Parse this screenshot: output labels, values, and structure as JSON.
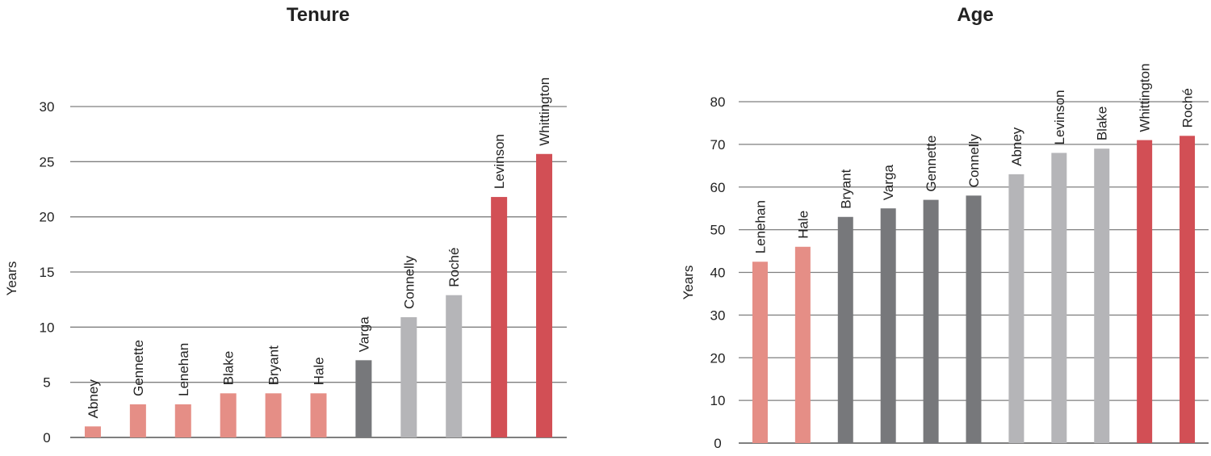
{
  "chart_data": [
    {
      "type": "bar",
      "title": "Tenure",
      "ylabel": "Years",
      "xlabel": "",
      "ylim": [
        0,
        30
      ],
      "yticks": [
        0,
        5,
        10,
        15,
        20,
        25,
        30
      ],
      "grid": true,
      "categories": [
        "Abney",
        "Gennette",
        "Lenehan",
        "Blake",
        "Bryant",
        "Hale",
        "Varga",
        "Connelly",
        "Roché",
        "Levinson",
        "Whittington"
      ],
      "values": [
        1,
        3,
        3,
        4,
        4,
        4,
        7,
        10.9,
        12.9,
        21.8,
        25.7
      ],
      "colors": [
        "#e58e86",
        "#e58e86",
        "#e58e86",
        "#e58e86",
        "#e58e86",
        "#e58e86",
        "#77787b",
        "#b5b5b8",
        "#b5b5b8",
        "#d24f55",
        "#d24f55"
      ]
    },
    {
      "type": "bar",
      "title": "Age",
      "ylabel": "Years",
      "xlabel": "",
      "ylim": [
        0,
        80
      ],
      "yticks": [
        0,
        10,
        20,
        30,
        40,
        50,
        60,
        70,
        80
      ],
      "grid": true,
      "categories": [
        "Lenehan",
        "Hale",
        "Bryant",
        "Varga",
        "Gennette",
        "Connelly",
        "Abney",
        "Levinson",
        "Blake",
        "Whittington",
        "Roché"
      ],
      "values": [
        42.5,
        46,
        53,
        55,
        57,
        58,
        63,
        68,
        69,
        71,
        72
      ],
      "colors": [
        "#e58e86",
        "#e58e86",
        "#77787b",
        "#77787b",
        "#77787b",
        "#77787b",
        "#b5b5b8",
        "#b5b5b8",
        "#b5b5b8",
        "#d24f55",
        "#d24f55"
      ]
    }
  ]
}
